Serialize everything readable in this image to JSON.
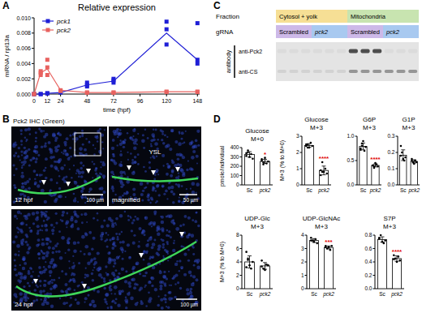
{
  "panel_labels": [
    "A",
    "B",
    "C",
    "D"
  ],
  "chart_data": [
    {
      "type": "line",
      "title": "Relative expression",
      "y_label": "mRNA / rpl13a",
      "x_label": "time (hpf)",
      "xlim": [
        0,
        150
      ],
      "ylim": [
        0,
        0.01
      ],
      "xticks": [
        0,
        12,
        24,
        48,
        72,
        96,
        120,
        148
      ],
      "yticks": [
        {
          "value": 0,
          "label": "0.000"
        },
        {
          "value": 0.002,
          "label": "0.002"
        },
        {
          "value": 0.004,
          "label": "0.004"
        },
        {
          "value": 0.006,
          "label": "0.006"
        },
        {
          "value": 0.008,
          "label": "0.008"
        },
        {
          "value": 0.01,
          "label": "0.010"
        }
      ],
      "legend": "top-left",
      "series": [
        {
          "name": "pck1",
          "color": "#1f1fd6",
          "marker": "square",
          "x": [
            0,
            6,
            12,
            24,
            48,
            72,
            120,
            148
          ],
          "values": [
            0,
            0,
            0.0001,
            0.0002,
            0.0012,
            0.0017,
            0.008,
            0.0045
          ],
          "points_x": [
            0,
            0,
            6,
            6,
            12,
            12,
            24,
            24,
            48,
            48,
            48,
            72,
            72,
            72,
            120,
            120,
            120,
            148,
            148,
            148
          ],
          "points": [
            0,
            0,
            0,
            0,
            0.0001,
            0.0001,
            0.0002,
            0.0003,
            0.001,
            0.0012,
            0.0015,
            0.0015,
            0.0018,
            0.002,
            0.0095,
            0.0085,
            0.0065,
            0.0093,
            0.0045,
            0.004
          ]
        },
        {
          "name": "pck2",
          "color": "#e8625f",
          "marker": "square",
          "x": [
            0,
            6,
            12,
            24,
            48,
            72,
            120,
            148
          ],
          "values": [
            0,
            0.0028,
            0.0033,
            0.0005,
            0.0002,
            0.0002,
            0.0003,
            0.0003
          ],
          "points_x": [
            0,
            0,
            6,
            6,
            6,
            12,
            12,
            12,
            24,
            24,
            48,
            48,
            72,
            72,
            120,
            120,
            148,
            148
          ],
          "points": [
            0,
            0,
            0.003,
            0.0028,
            0.0025,
            0.0045,
            0.0035,
            0.0025,
            0.0005,
            0.0004,
            0.0002,
            0.0002,
            0.0002,
            0.0002,
            0.0003,
            0.0003,
            0.0003,
            0.0003
          ]
        }
      ]
    },
    {
      "type": "bar",
      "title": "Glucose",
      "subtitle": "M+0",
      "y_label": "pmole/individual",
      "categories": [
        "Sc",
        "pck2"
      ],
      "values": [
        326,
        252
      ],
      "errors": [
        30,
        22
      ],
      "color": "#ffffff",
      "points": [
        [
          340,
          370,
          300,
          330,
          280,
          310,
          350
        ],
        [
          260,
          240,
          290,
          230,
          250,
          275,
          220
        ]
      ],
      "annotations": [
        {
          "category": 1,
          "text": "*"
        }
      ],
      "ylim": [
        0,
        400
      ],
      "yticks": [
        0,
        100,
        200,
        300,
        400
      ]
    },
    {
      "type": "bar",
      "title": "Glucose",
      "subtitle": "M+3",
      "y_label": "M+3 (% to M+0)",
      "categories": [
        "Sc",
        "pck2"
      ],
      "values": [
        2.43,
        0.89
      ],
      "errors": [
        0.11,
        0.27
      ],
      "color": "#ffffff",
      "points": [
        [
          2.4,
          2.5,
          2.3,
          2.6,
          2.4,
          2.5,
          2.3
        ],
        [
          0.6,
          1.4,
          0.8,
          1.0,
          0.7,
          0.9,
          0.8
        ]
      ],
      "annotations": [
        {
          "category": 1,
          "text": "****"
        }
      ],
      "ylim": [
        0,
        3
      ],
      "yticks": [
        0,
        1,
        2,
        3
      ]
    },
    {
      "type": "bar",
      "title": "G6P",
      "subtitle": "M+3",
      "categories": [
        "Sc",
        "pck2"
      ],
      "values": [
        0.79,
        0.4
      ],
      "errors": [
        0.07,
        0.03
      ],
      "color": "#ffffff",
      "points": [
        [
          0.75,
          0.8,
          0.9,
          0.7,
          0.78,
          0.72,
          0.85
        ],
        [
          0.4,
          0.35,
          0.45,
          0.42,
          0.38,
          0.4,
          0.37
        ]
      ],
      "annotations": [
        {
          "category": 1,
          "text": "****"
        }
      ],
      "ylim": [
        0,
        1
      ],
      "yticks": [
        {
          "value": 0,
          "label": "0.0"
        },
        {
          "value": 0.5,
          "label": "0.5"
        },
        {
          "value": 1,
          "label": "1.0"
        }
      ]
    },
    {
      "type": "bar",
      "title": "G1P",
      "subtitle": "M+3",
      "categories": [
        "Sc",
        "pck2"
      ],
      "values": [
        0.183,
        0.145
      ],
      "errors": [
        0.033,
        0.01
      ],
      "color": "#ffffff",
      "points": [
        [
          0.24,
          0.2,
          0.16,
          0.15,
          0.17,
          0.18
        ],
        [
          0.15,
          0.14,
          0.13,
          0.15,
          0.14,
          0.16
        ]
      ],
      "ylim": [
        0,
        0.3
      ],
      "yticks": [
        {
          "value": 0,
          "label": "0.0"
        },
        0.1,
        0.2,
        0.3
      ]
    },
    {
      "type": "bar",
      "title": "UDP-Glc",
      "subtitle": "M+3",
      "y_label": "M+3 (% to M+0)",
      "categories": [
        "Sc",
        "pck2"
      ],
      "values": [
        4.0,
        3.4
      ],
      "errors": [
        0.9,
        0.5
      ],
      "color": "#ffffff",
      "points": [
        [
          5.5,
          4.5,
          3.5,
          3.0,
          4.0,
          3.2,
          4.3
        ],
        [
          4.2,
          3.0,
          2.8,
          3.6,
          3.5,
          3.3
        ]
      ],
      "ylim": [
        0,
        8
      ],
      "yticks": [
        0,
        2,
        4,
        6,
        8
      ]
    },
    {
      "type": "bar",
      "title": "UDP-GlcNAc",
      "subtitle": "M+3",
      "categories": [
        "Sc",
        "pck2"
      ],
      "values": [
        3.6,
        3.08
      ],
      "errors": [
        0.14,
        0.11
      ],
      "color": "#ffffff",
      "points": [
        [
          3.8,
          3.6,
          3.5,
          3.7,
          3.4,
          3.6
        ],
        [
          3.2,
          3.0,
          3.1,
          2.9,
          3.2,
          3.1
        ]
      ],
      "annotations": [
        {
          "category": 1,
          "text": "***"
        }
      ],
      "ylim": [
        0,
        4
      ],
      "yticks": [
        0,
        1,
        2,
        3,
        4
      ]
    },
    {
      "type": "bar",
      "title": "S7P",
      "subtitle": "M+3",
      "categories": [
        "Sc",
        "pck2"
      ],
      "values": [
        0.735,
        0.45
      ],
      "errors": [
        0.04,
        0.04
      ],
      "color": "#ffffff",
      "points": [
        [
          0.75,
          0.8,
          0.7,
          0.68,
          0.72,
          0.76
        ],
        [
          0.5,
          0.45,
          0.4,
          0.48,
          0.42,
          0.44
        ]
      ],
      "annotations": [
        {
          "category": 1,
          "text": "****"
        }
      ],
      "ylim": [
        0,
        0.8
      ],
      "yticks": [
        {
          "value": 0,
          "label": "0.0"
        },
        0.2,
        0.4,
        0.6,
        0.8
      ]
    }
  ],
  "panel_b": {
    "title": "Pck2 IHC (Green)",
    "images": [
      {
        "label": "12 hpf",
        "scale_bar": "100 µm"
      },
      {
        "label": "magnified",
        "scale_bar": "50 µm",
        "region": "YSL"
      },
      {
        "label": "24 hpf",
        "scale_bar": "100 µm"
      }
    ]
  },
  "panel_c": {
    "rows": [
      {
        "label": "Fraction",
        "cells": [
          "Cytosol + yolk",
          "Mitochondria"
        ]
      },
      {
        "label": "gRNA",
        "cells": [
          "Scrambled",
          "pck2",
          "Scrambled",
          "pck2"
        ]
      }
    ],
    "antibody_label": "antibody",
    "antibodies": [
      "anti-Pck2",
      "anti-CS"
    ]
  }
}
